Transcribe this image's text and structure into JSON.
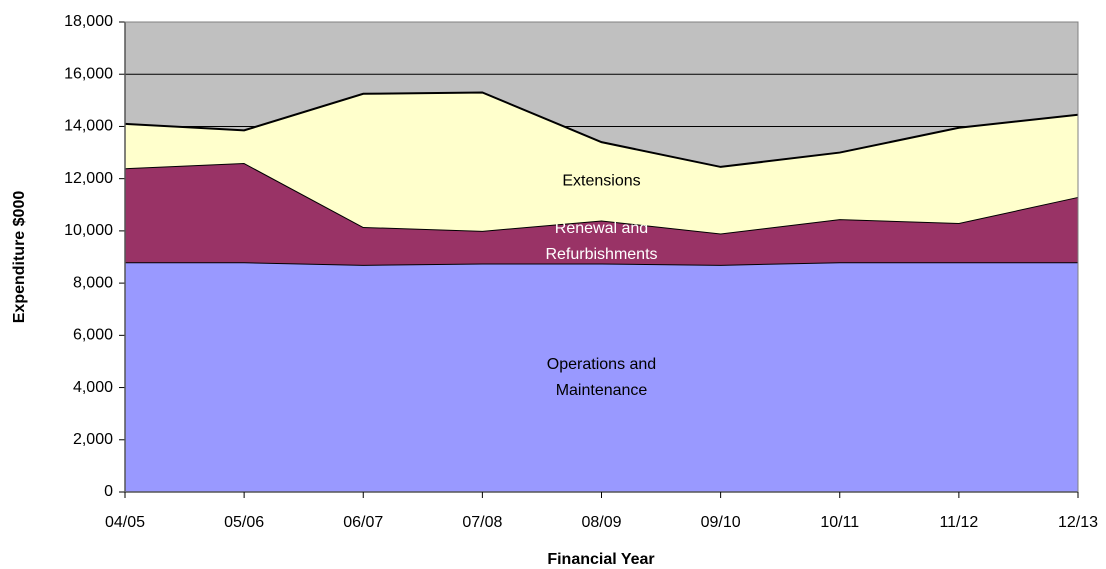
{
  "chart_data": {
    "type": "area",
    "stacked": true,
    "x_label": "Financial Year",
    "y_label": "Expenditure $000",
    "categories": [
      "04/05",
      "05/06",
      "06/07",
      "07/08",
      "08/09",
      "09/10",
      "10/11",
      "11/12",
      "12/13"
    ],
    "series": [
      {
        "label": [
          "Operations and",
          "Maintenance"
        ],
        "color": "#9999ff",
        "label_color": "#000000",
        "values": [
          8800,
          8800,
          8700,
          8750,
          8750,
          8700,
          8800,
          8800,
          8800
        ]
      },
      {
        "label": [
          "Renewal and",
          "Refurbishments"
        ],
        "color": "#993366",
        "label_color": "#ffffff",
        "values": [
          3600,
          3800,
          1450,
          1250,
          1650,
          1200,
          1650,
          1500,
          2500
        ]
      },
      {
        "label": [
          "Extensions"
        ],
        "color": "#ffffcc",
        "label_color": "#000000",
        "values": [
          1700,
          1250,
          5100,
          5300,
          3000,
          2550,
          2550,
          3650,
          3150
        ]
      }
    ],
    "ylim": [
      0,
      18000
    ],
    "yticks": [
      0,
      {
        "value": 2000,
        "label": "2,000"
      },
      {
        "value": 4000,
        "label": "4,000"
      },
      {
        "value": 6000,
        "label": "6,000"
      },
      {
        "value": 8000,
        "label": "8,000"
      },
      {
        "value": 10000,
        "label": "10,000"
      },
      {
        "value": 12000,
        "label": "12,000"
      },
      {
        "value": 14000,
        "label": "14,000"
      },
      {
        "value": 16000,
        "label": "16,000"
      },
      {
        "value": 18000,
        "label": "18,000"
      }
    ],
    "grid": true,
    "background": "#c0c0c0"
  }
}
